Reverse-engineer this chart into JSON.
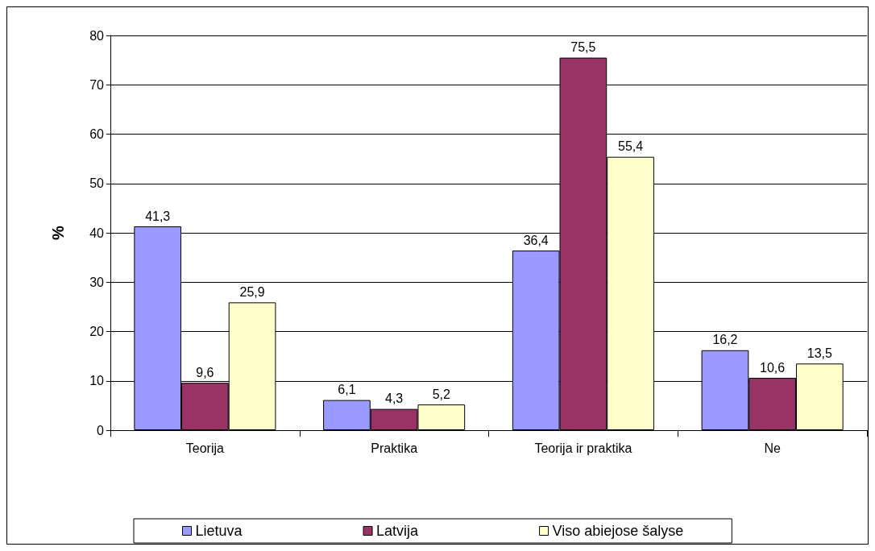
{
  "chart_data": {
    "type": "bar",
    "ylabel": "%",
    "categories": [
      "Teorija",
      "Praktika",
      "Teorija ir praktika",
      "Ne"
    ],
    "series": [
      {
        "name": "Lietuva",
        "color": "#9999ff",
        "values": [
          41.3,
          6.1,
          36.4,
          16.2
        ],
        "value_labels": [
          "41,3",
          "6,1",
          "36,4",
          "16,2"
        ]
      },
      {
        "name": "Latvija",
        "color": "#993366",
        "values": [
          9.6,
          4.3,
          75.5,
          10.6
        ],
        "value_labels": [
          "9,6",
          "4,3",
          "75,5",
          "10,6"
        ]
      },
      {
        "name": "Viso abiejose šalyse",
        "color": "#ffffcc",
        "values": [
          25.9,
          5.2,
          55.4,
          13.5
        ],
        "value_labels": [
          "25,9",
          "5,2",
          "55,4",
          "13,5"
        ]
      }
    ],
    "ylim": [
      0,
      80
    ],
    "yticks": [
      0,
      10,
      20,
      30,
      40,
      50,
      60,
      70,
      80
    ],
    "grid": "y",
    "legend": "bottom"
  }
}
